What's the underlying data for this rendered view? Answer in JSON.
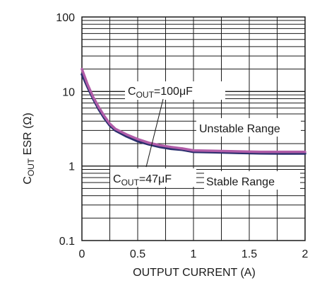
{
  "chart_data": {
    "type": "line",
    "xlabel": "OUTPUT CURRENT (A)",
    "ylabel": {
      "prefix": "C",
      "sub": "OUT",
      "rest": " ESR (Ω)"
    },
    "xlim": [
      0,
      2
    ],
    "ylim": [
      0.1,
      100
    ],
    "yscale": "log",
    "x_ticks": [
      "0",
      "0.5",
      "1",
      "1.5",
      "2"
    ],
    "y_ticks": [
      "0.1",
      "1",
      "10",
      "100"
    ],
    "grid": true,
    "series": [
      {
        "color": "#2b2f6e",
        "x": [
          0,
          0.05,
          0.1,
          0.15,
          0.2,
          0.25,
          0.3,
          0.4,
          0.5,
          0.6,
          0.7,
          0.8,
          0.9,
          1.0,
          1.2,
          1.4,
          1.6,
          1.8,
          2.0
        ],
        "y": [
          17,
          11.5,
          8,
          5.8,
          4.4,
          3.5,
          3.0,
          2.5,
          2.15,
          1.95,
          1.8,
          1.7,
          1.65,
          1.55,
          1.53,
          1.5,
          1.48,
          1.47,
          1.47
        ]
      },
      {
        "color": "#b05ca8",
        "x": [
          0,
          0.05,
          0.1,
          0.15,
          0.2,
          0.25,
          0.3,
          0.4,
          0.5,
          0.6,
          0.7,
          0.8,
          0.9,
          1.0,
          1.2,
          1.4,
          1.6,
          1.8,
          2.0
        ],
        "y": [
          20,
          12.5,
          8.5,
          6.2,
          4.7,
          3.7,
          3.15,
          2.65,
          2.3,
          2.05,
          1.9,
          1.8,
          1.72,
          1.62,
          1.6,
          1.57,
          1.55,
          1.55,
          1.55
        ]
      }
    ],
    "annotations": {
      "cout_100": {
        "prefix": "C",
        "sub": "OUT",
        "rest": "=100μF"
      },
      "cout_47": {
        "prefix": "C",
        "sub": "OUT",
        "rest": "=47μF"
      },
      "unstable": "Unstable Range",
      "stable": "Stable Range"
    }
  }
}
